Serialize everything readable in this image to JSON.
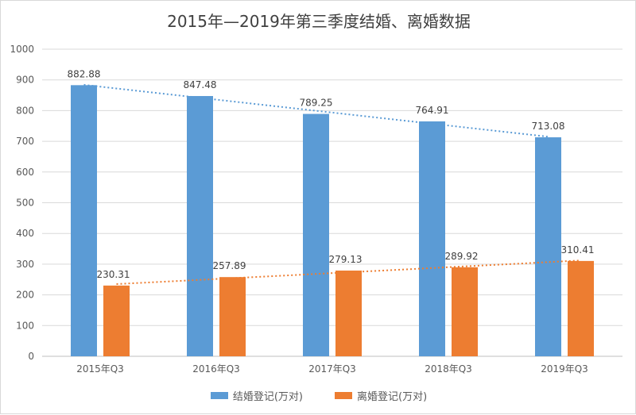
{
  "chart_data": {
    "type": "bar",
    "title": "2015年—2019年第三季度结婚、离婚数据",
    "categories": [
      "2015年Q3",
      "2016年Q3",
      "2017年Q3",
      "2018年Q3",
      "2019年Q3"
    ],
    "series": [
      {
        "name": "结婚登记(万对)",
        "values": [
          882.88,
          847.48,
          789.25,
          764.91,
          713.08
        ],
        "color": "#5b9bd5",
        "trendline": "linear"
      },
      {
        "name": "离婚登记(万对)",
        "values": [
          230.31,
          257.89,
          279.13,
          289.92,
          310.41
        ],
        "color": "#ed7d31",
        "trendline": "linear"
      }
    ],
    "ylim": [
      0,
      1000
    ],
    "yticks": [
      0,
      100,
      200,
      300,
      400,
      500,
      600,
      700,
      800,
      900,
      1000
    ],
    "grid": true,
    "legend": "bottom"
  }
}
